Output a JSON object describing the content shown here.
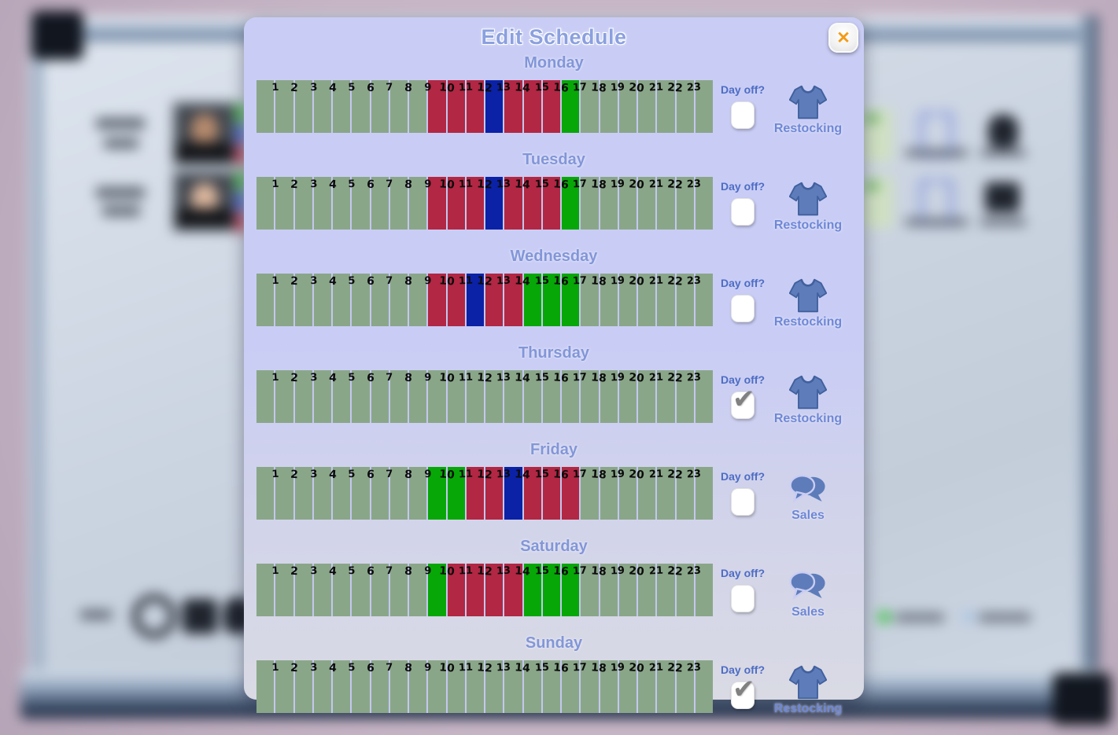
{
  "dialog": {
    "title": "Edit Schedule",
    "close_glyph": "✕",
    "day_off_label": "Day off?"
  },
  "colors": {
    "s": "#8AA689",
    "r": "#B22743",
    "b": "#0B21A6",
    "g": "#07A707",
    "separator": "#C3C8EE",
    "accent_text": "#4D6CC4",
    "title_text": "#8BA0DF",
    "close_x": "#F49A15",
    "icon_blue": "#5E7CBA"
  },
  "hours": [
    "1",
    "2",
    "3",
    "4",
    "5",
    "6",
    "7",
    "8",
    "9",
    "10",
    "11",
    "12",
    "13",
    "14",
    "15",
    "16",
    "17",
    "18",
    "19",
    "20",
    "21",
    "22",
    "23"
  ],
  "days": [
    {
      "name": "Monday",
      "day_off": false,
      "role": "Restocking",
      "icon": "tshirt-icon",
      "segments": [
        "s",
        "s",
        "s",
        "s",
        "s",
        "s",
        "s",
        "s",
        "s",
        "r",
        "r",
        "r",
        "b",
        "r",
        "r",
        "r",
        "g",
        "s",
        "s",
        "s",
        "s",
        "s",
        "s",
        "s"
      ]
    },
    {
      "name": "Tuesday",
      "day_off": false,
      "role": "Restocking",
      "icon": "tshirt-icon",
      "segments": [
        "s",
        "s",
        "s",
        "s",
        "s",
        "s",
        "s",
        "s",
        "s",
        "r",
        "r",
        "r",
        "b",
        "r",
        "r",
        "r",
        "g",
        "s",
        "s",
        "s",
        "s",
        "s",
        "s",
        "s"
      ]
    },
    {
      "name": "Wednesday",
      "day_off": false,
      "role": "Restocking",
      "icon": "tshirt-icon",
      "segments": [
        "s",
        "s",
        "s",
        "s",
        "s",
        "s",
        "s",
        "s",
        "s",
        "r",
        "r",
        "b",
        "r",
        "r",
        "g",
        "g",
        "g",
        "s",
        "s",
        "s",
        "s",
        "s",
        "s",
        "s"
      ]
    },
    {
      "name": "Thursday",
      "day_off": true,
      "role": "Restocking",
      "icon": "tshirt-icon",
      "segments": [
        "s",
        "s",
        "s",
        "s",
        "s",
        "s",
        "s",
        "s",
        "s",
        "s",
        "s",
        "s",
        "s",
        "s",
        "s",
        "s",
        "s",
        "s",
        "s",
        "s",
        "s",
        "s",
        "s",
        "s"
      ]
    },
    {
      "name": "Friday",
      "day_off": false,
      "role": "Sales",
      "icon": "speech-bubbles-icon",
      "segments": [
        "s",
        "s",
        "s",
        "s",
        "s",
        "s",
        "s",
        "s",
        "s",
        "g",
        "g",
        "r",
        "r",
        "b",
        "r",
        "r",
        "r",
        "s",
        "s",
        "s",
        "s",
        "s",
        "s",
        "s"
      ]
    },
    {
      "name": "Saturday",
      "day_off": false,
      "role": "Sales",
      "icon": "speech-bubbles-icon",
      "segments": [
        "s",
        "s",
        "s",
        "s",
        "s",
        "s",
        "s",
        "s",
        "s",
        "g",
        "r",
        "r",
        "r",
        "r",
        "g",
        "g",
        "g",
        "s",
        "s",
        "s",
        "s",
        "s",
        "s",
        "s"
      ]
    },
    {
      "name": "Sunday",
      "day_off": true,
      "role": "Restocking",
      "icon": "tshirt-icon",
      "segments": [
        "s",
        "s",
        "s",
        "s",
        "s",
        "s",
        "s",
        "s",
        "s",
        "s",
        "s",
        "s",
        "s",
        "s",
        "s",
        "s",
        "s",
        "s",
        "s",
        "s",
        "s",
        "s",
        "s",
        "s"
      ]
    }
  ]
}
